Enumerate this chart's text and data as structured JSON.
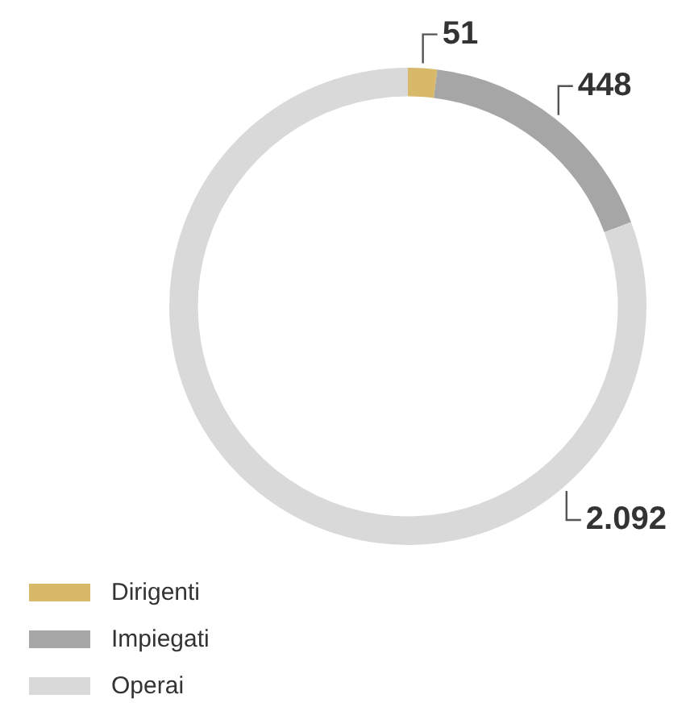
{
  "chart_data": {
    "type": "donut",
    "categories": [
      "Dirigenti",
      "Impiegati",
      "Operai"
    ],
    "values": [
      51,
      448,
      2092
    ],
    "colors": [
      "#d8b969",
      "#a6a6a6",
      "#d9d9d9"
    ],
    "value_labels": [
      "51",
      "448",
      "2.092"
    ],
    "legend": "bottom left"
  }
}
